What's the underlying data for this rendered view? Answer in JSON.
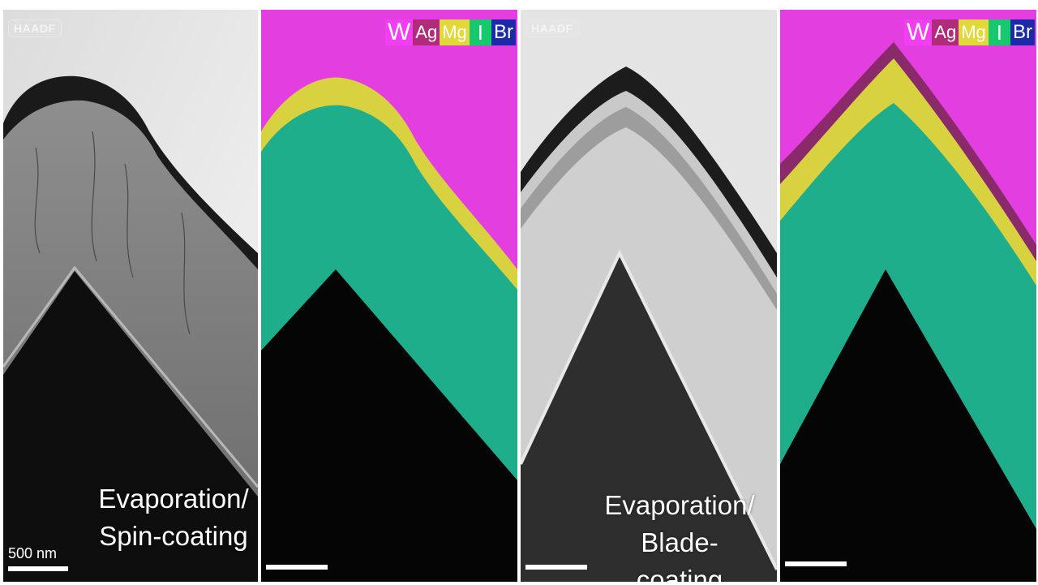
{
  "panels": [
    {
      "id": "haadf-spin",
      "label": "HAADF",
      "caption_line1": "Evaporation/",
      "caption_line2": "Spin-coating",
      "scalebar": "500 nm"
    },
    {
      "id": "eds-spin",
      "legend": [
        "W",
        "Ag",
        "Mg",
        "I",
        "Br"
      ]
    },
    {
      "id": "haadf-blade",
      "label": "HAADF",
      "caption_line1": "Evaporation/",
      "caption_line2": "Blade-coating"
    },
    {
      "id": "eds-blade",
      "legend": [
        "W",
        "Ag",
        "Mg",
        "I",
        "Br"
      ]
    }
  ],
  "colors": {
    "W": "#f23ef2",
    "Ag": "#b02c7a",
    "Mg": "#e3d83a",
    "I": "#16c86e",
    "Br": "#1a2aa8"
  }
}
